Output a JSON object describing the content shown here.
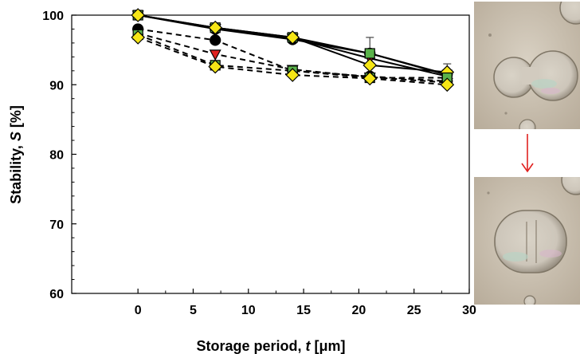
{
  "chart_data": {
    "type": "line",
    "xlabel_prefix": "Storage period, ",
    "xlabel_var": "t",
    "xlabel_unit": " [μm]",
    "ylabel_prefix": "Stability, ",
    "ylabel_var": "S",
    "ylabel_unit": " [%]",
    "xlim": [
      -6,
      30
    ],
    "ylim": [
      60,
      100
    ],
    "xticks": [
      0,
      5,
      10,
      15,
      20,
      25,
      30
    ],
    "yticks": [
      60,
      70,
      80,
      90,
      100
    ],
    "x": [
      0,
      7,
      14,
      21,
      28
    ],
    "series": [
      {
        "marker": "circle",
        "color": "#000000",
        "dash": false,
        "values": [
          100,
          98,
          96.5,
          94.5,
          91.5
        ],
        "err": [
          0,
          0,
          0,
          2.3,
          0
        ]
      },
      {
        "marker": "triangle",
        "color": "#e0211f",
        "dash": false,
        "values": [
          100,
          98.1,
          96.7,
          93.8,
          91.2
        ],
        "err": [
          0,
          0,
          0,
          0,
          0
        ]
      },
      {
        "marker": "square",
        "color": "#5ab24a",
        "dash": false,
        "values": [
          100,
          98.2,
          96.8,
          94.5,
          91.4
        ],
        "err": [
          0,
          0,
          0,
          0,
          0
        ]
      },
      {
        "marker": "diamond",
        "color": "#f5e616",
        "dash": false,
        "values": [
          100,
          98.2,
          96.8,
          92.8,
          91.8
        ],
        "err": [
          0,
          0,
          0,
          0,
          1.2
        ]
      },
      {
        "marker": "circle",
        "color": "#000000",
        "dash": true,
        "values": [
          98,
          96.4,
          92,
          91.2,
          90.5
        ],
        "err": [
          0,
          0,
          0,
          0,
          0
        ]
      },
      {
        "marker": "triangle",
        "color": "#e0211f",
        "dash": true,
        "values": [
          97.4,
          94.4,
          92.2,
          91.1,
          90.3
        ],
        "err": [
          0,
          0,
          0.5,
          0,
          0
        ]
      },
      {
        "marker": "square",
        "color": "#5ab24a",
        "dash": true,
        "values": [
          97.2,
          92.8,
          92,
          91,
          91
        ],
        "err": [
          0,
          0,
          0,
          0,
          0
        ]
      },
      {
        "marker": "diamond",
        "color": "#f5e616",
        "dash": true,
        "values": [
          96.8,
          92.6,
          91.4,
          90.9,
          90
        ],
        "err": [
          0.8,
          0,
          0,
          0,
          0
        ]
      }
    ]
  },
  "micrographs": {
    "top": "droplet-pair-micrograph-before",
    "bottom": "droplet-pair-micrograph-after",
    "arrow_color": "#e0211f",
    "icon": "down-arrow-icon"
  }
}
